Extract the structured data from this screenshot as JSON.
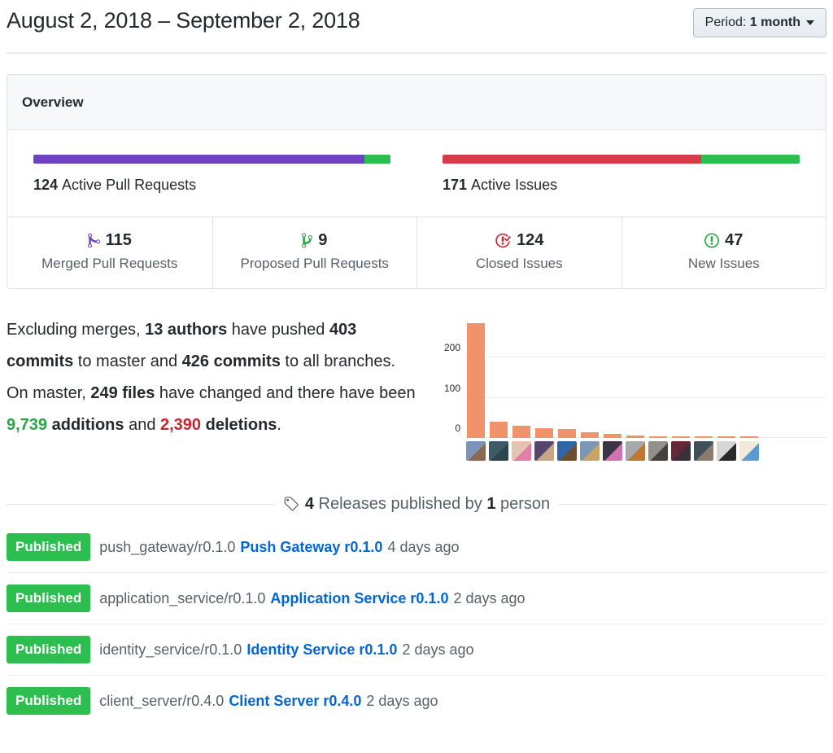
{
  "page": {
    "title": "August 2, 2018 – September 2, 2018",
    "period_button": {
      "label": "Period: ",
      "value": "1 month"
    }
  },
  "colors": {
    "purple": "#6f42c1",
    "green": "#28a745",
    "bright_green": "#2cbe4e",
    "red_bar": "#d73a49",
    "red_icon": "#cb2431",
    "link_blue": "#0366d6",
    "bar_salmon": "#f0936a",
    "muted_text": "#586069"
  },
  "overview": {
    "title": "Overview",
    "pull_requests": {
      "count": "124",
      "label": "Active Pull Requests",
      "segments": [
        {
          "name": "merged",
          "pct": 92.7,
          "color": "#6f42c1"
        },
        {
          "name": "open",
          "pct": 7.3,
          "color": "#2cbe4e"
        }
      ]
    },
    "issues": {
      "count": "171",
      "label": "Active Issues",
      "segments": [
        {
          "name": "closed",
          "pct": 72.5,
          "color": "#d73a49"
        },
        {
          "name": "new",
          "pct": 27.5,
          "color": "#2cbe4e"
        }
      ]
    },
    "stats": [
      {
        "icon": "git-merge-icon",
        "color": "#6f42c1",
        "value": "115",
        "label": "Merged Pull Requests"
      },
      {
        "icon": "git-branch-icon",
        "color": "#28a745",
        "value": "9",
        "label": "Proposed Pull Requests"
      },
      {
        "icon": "issue-closed-icon",
        "color": "#cb2431",
        "value": "124",
        "label": "Closed Issues"
      },
      {
        "icon": "issue-opened-icon",
        "color": "#28a745",
        "value": "47",
        "label": "New Issues"
      }
    ]
  },
  "summary": {
    "segments": [
      {
        "text": "Excluding merges, ",
        "style": "n"
      },
      {
        "text": "13 authors",
        "style": "b"
      },
      {
        "text": " have pushed ",
        "style": "n"
      },
      {
        "text": "403 commits",
        "style": "b"
      },
      {
        "text": " to master and ",
        "style": "n"
      },
      {
        "text": "426 commits",
        "style": "b"
      },
      {
        "text": " to all branches. On master, ",
        "style": "n"
      },
      {
        "text": "249 files",
        "style": "b"
      },
      {
        "text": " have changed and there have been ",
        "style": "n"
      },
      {
        "text": "9,739",
        "style": "add"
      },
      {
        "text": " additions",
        "style": "b"
      },
      {
        "text": " and ",
        "style": "n"
      },
      {
        "text": "2,390",
        "style": "del"
      },
      {
        "text": " deletions",
        "style": "b"
      },
      {
        "text": ".",
        "style": "n"
      }
    ]
  },
  "chart_data": {
    "type": "bar",
    "title": "Commits per contributor (avatars as category labels)",
    "values": [
      285,
      40,
      30,
      25,
      23,
      14,
      10,
      7,
      5,
      3,
      3,
      3,
      2
    ],
    "yticks": [
      0,
      100,
      200
    ],
    "ylim": [
      0,
      300
    ],
    "grid": true,
    "bar_color": "#f0936a",
    "contributors": [
      {
        "avatar_colors": [
          "#7d94b8",
          "#8a6a4e"
        ]
      },
      {
        "avatar_colors": [
          "#3e5a64",
          "#2e454e"
        ]
      },
      {
        "avatar_colors": [
          "#e3c4b2",
          "#e080a8"
        ]
      },
      {
        "avatar_colors": [
          "#56466b",
          "#c9a585"
        ]
      },
      {
        "avatar_colors": [
          "#2f66a8",
          "#6b4e2f"
        ]
      },
      {
        "avatar_colors": [
          "#7a98b5",
          "#caa362"
        ]
      },
      {
        "avatar_colors": [
          "#3c3545",
          "#cf74b0"
        ]
      },
      {
        "avatar_colors": [
          "#a5a9ab",
          "#c0762f"
        ]
      },
      {
        "avatar_colors": [
          "#93908b",
          "#45403c"
        ]
      },
      {
        "avatar_colors": [
          "#642836",
          "#38303a"
        ]
      },
      {
        "avatar_colors": [
          "#415058",
          "#8c7c6a"
        ]
      },
      {
        "avatar_colors": [
          "#d6d6d6",
          "#2a2a2a"
        ]
      },
      {
        "avatar_colors": [
          "#f2ead8",
          "#5b9bd5"
        ]
      }
    ]
  },
  "releases": {
    "header_segments": [
      {
        "text": "4",
        "style": "strong"
      },
      {
        "text": " Releases published by ",
        "style": "muted"
      },
      {
        "text": "1",
        "style": "strong"
      },
      {
        "text": " person",
        "style": "muted"
      }
    ],
    "items": [
      {
        "badge": "Published",
        "tag": "push_gateway/r0.1.0",
        "link": "Push Gateway r0.1.0",
        "time": "4 days ago"
      },
      {
        "badge": "Published",
        "tag": "application_service/r0.1.0",
        "link": "Application Service r0.1.0",
        "time": "2 days ago"
      },
      {
        "badge": "Published",
        "tag": "identity_service/r0.1.0",
        "link": "Identity Service r0.1.0",
        "time": "2 days ago"
      },
      {
        "badge": "Published",
        "tag": "client_server/r0.4.0",
        "link": "Client Server r0.4.0",
        "time": "2 days ago"
      }
    ]
  }
}
